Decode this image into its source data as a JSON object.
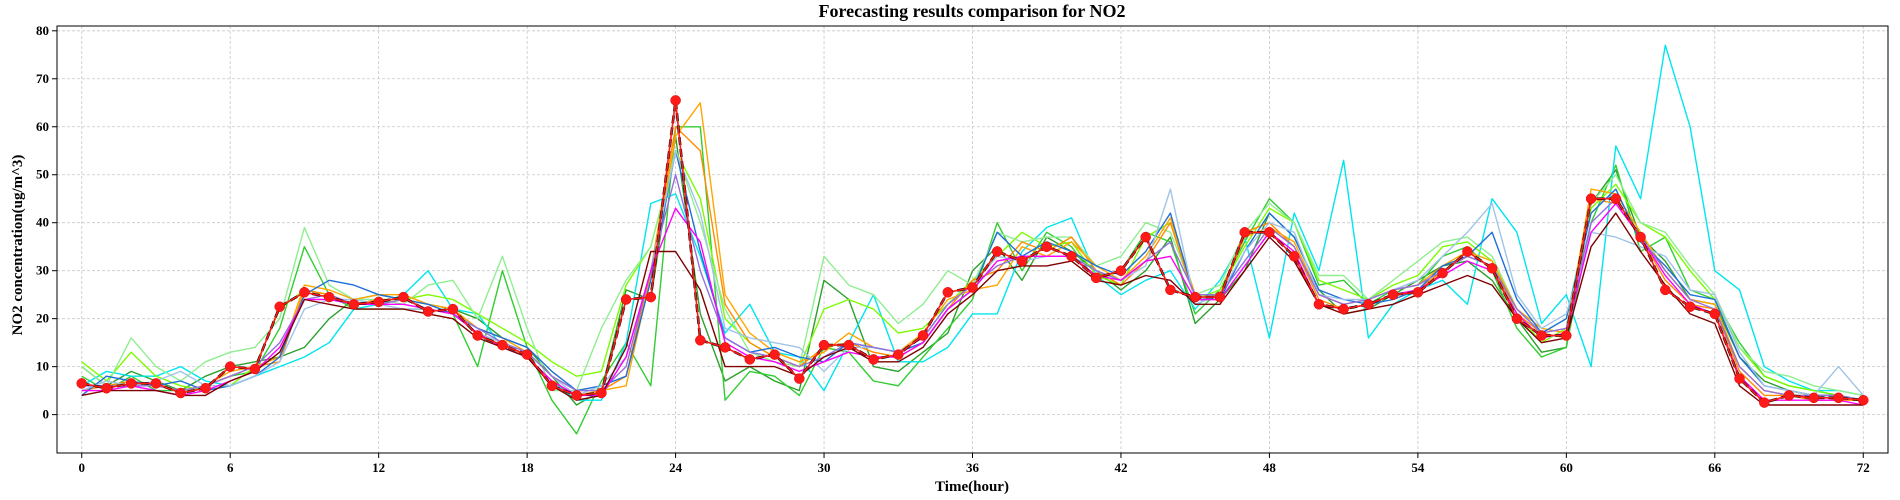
{
  "chart_data": {
    "type": "line",
    "title": "Forecasting results comparison for NO2",
    "xlabel": "Time(hour)",
    "ylabel": "NO2 concentration(ug/m^3)",
    "xlim": [
      -1,
      73
    ],
    "ylim": [
      -8,
      81
    ],
    "xticks": [
      0,
      6,
      12,
      18,
      24,
      30,
      36,
      42,
      48,
      54,
      60,
      66,
      72
    ],
    "yticks": [
      0,
      10,
      20,
      30,
      40,
      50,
      60,
      70,
      80
    ],
    "grid": true,
    "x": [
      0,
      1,
      2,
      3,
      4,
      5,
      6,
      7,
      8,
      9,
      10,
      11,
      12,
      13,
      14,
      15,
      16,
      17,
      18,
      19,
      20,
      21,
      22,
      23,
      24,
      25,
      26,
      27,
      28,
      29,
      30,
      31,
      32,
      33,
      34,
      35,
      36,
      37,
      38,
      39,
      40,
      41,
      42,
      43,
      44,
      45,
      46,
      47,
      48,
      49,
      50,
      51,
      52,
      53,
      54,
      55,
      56,
      57,
      58,
      59,
      60,
      61,
      62,
      63,
      64,
      65,
      66,
      67,
      68,
      69,
      70,
      71,
      72
    ],
    "actual": [
      6.5,
      5.5,
      6.5,
      6.5,
      4.5,
      5.5,
      10,
      9.5,
      22.5,
      25.5,
      24.5,
      23,
      23.5,
      24.5,
      21.5,
      22,
      16.5,
      14.5,
      12.5,
      6,
      4,
      4.5,
      24,
      24.5,
      65.5,
      15.5,
      14,
      11.5,
      12.5,
      7.5,
      14.5,
      14.5,
      11.5,
      12.5,
      16.5,
      25.5,
      26.5,
      34,
      32,
      35,
      33,
      28.5,
      30,
      37,
      26,
      24.5,
      24.5,
      38,
      38,
      33,
      23,
      22,
      23,
      25,
      25.5,
      29.5,
      34,
      30.5,
      20,
      16.5,
      16.5,
      45,
      45,
      37,
      26,
      22.5,
      21,
      7.5,
      2.5,
      4,
      3.5,
      3.5,
      3
    ],
    "series": [
      {
        "color": "#2ca02c",
        "values": [
          10,
          6,
          9,
          7,
          5,
          8,
          10,
          11,
          12,
          14,
          20,
          24,
          25,
          24,
          23,
          22,
          20,
          16,
          14,
          8,
          2,
          5,
          26,
          24,
          58,
          21,
          7,
          10,
          7,
          5,
          28,
          24,
          10,
          9,
          13,
          17,
          30,
          35,
          28,
          37,
          34,
          30,
          26,
          30,
          37,
          19,
          24,
          30,
          42,
          37,
          26,
          21,
          22,
          25,
          28,
          31,
          32,
          28,
          20,
          13,
          14,
          44,
          51,
          37,
          32,
          24,
          23,
          12,
          7,
          5,
          4,
          4,
          3
        ]
      },
      {
        "color": "#32cd32",
        "values": [
          8,
          5,
          8,
          5,
          5,
          6,
          8,
          9,
          18,
          35,
          25,
          22,
          22,
          22,
          22,
          21,
          10,
          30,
          14,
          3,
          -4,
          7,
          15,
          6,
          60,
          60,
          3,
          9,
          8,
          4,
          14,
          13,
          7,
          6,
          12,
          18,
          24,
          40,
          30,
          38,
          35,
          28,
          30,
          38,
          36,
          21,
          26,
          36,
          45,
          40,
          27,
          28,
          23,
          26,
          27,
          33,
          35,
          30,
          18,
          12,
          14,
          40,
          52,
          34,
          37,
          26,
          24,
          15,
          8,
          6,
          5,
          4,
          3
        ]
      },
      {
        "color": "#00e5ee",
        "values": [
          6,
          9,
          8,
          8,
          10,
          7,
          6,
          8,
          10,
          12,
          15,
          22,
          23,
          25,
          30,
          22,
          21,
          14,
          12,
          7,
          3,
          3,
          15,
          44,
          46,
          33,
          17,
          23,
          13,
          12,
          5,
          15,
          25,
          11,
          11,
          14,
          21,
          21,
          34,
          39,
          41,
          29,
          25,
          28,
          30,
          22,
          28,
          37,
          16,
          42,
          30,
          53,
          16,
          23,
          26,
          28,
          23,
          45,
          38,
          19,
          25,
          10,
          56,
          45,
          77,
          60,
          30,
          26,
          10,
          7,
          5,
          5,
          4
        ]
      },
      {
        "color": "#7cfc00",
        "values": [
          11,
          7,
          13,
          8,
          6,
          5,
          6,
          10,
          22,
          26,
          25,
          23,
          23,
          24,
          25,
          24,
          21,
          18,
          15,
          11,
          8,
          9,
          27,
          35,
          55,
          45,
          20,
          15,
          12,
          10,
          22,
          24,
          22,
          17,
          18,
          23,
          28,
          33,
          38,
          35,
          36,
          29,
          27,
          37,
          40,
          24,
          26,
          35,
          43,
          40,
          28,
          26,
          24,
          27,
          29,
          35,
          36,
          32,
          21,
          15,
          18,
          43,
          48,
          40,
          37,
          30,
          24,
          14,
          8,
          6,
          5,
          4,
          3
        ]
      },
      {
        "color": "#90ee90",
        "values": [
          10,
          6,
          16,
          10,
          7,
          11,
          13,
          14,
          20,
          39,
          27,
          24,
          24,
          23,
          27,
          28,
          20,
          33,
          18,
          5,
          5,
          18,
          28,
          35,
          55,
          40,
          22,
          13,
          11,
          10,
          33,
          27,
          25,
          19,
          23,
          30,
          27,
          38,
          36,
          37,
          37,
          31,
          33,
          40,
          38,
          25,
          27,
          38,
          44,
          40,
          29,
          29,
          24,
          28,
          32,
          36,
          37,
          33,
          22,
          17,
          20,
          44,
          50,
          40,
          38,
          31,
          25,
          14,
          9,
          8,
          6,
          5,
          4
        ]
      },
      {
        "color": "#ff8c00",
        "values": [
          5,
          6,
          7,
          6,
          5,
          6,
          8,
          10,
          11,
          26,
          25,
          23,
          24,
          24,
          22,
          21,
          17,
          15,
          12,
          7,
          4,
          5,
          8,
          30,
          60,
          55,
          23,
          15,
          12,
          10,
          14,
          15,
          13,
          12,
          15,
          22,
          28,
          30,
          36,
          34,
          37,
          30,
          27,
          32,
          40,
          24,
          24,
          38,
          40,
          35,
          24,
          22,
          23,
          25,
          26,
          30,
          33,
          31,
          21,
          17,
          16,
          45,
          44,
          37,
          28,
          23,
          22,
          9,
          4,
          4,
          3,
          3,
          3
        ]
      },
      {
        "color": "#ffa500",
        "values": [
          6,
          6,
          6,
          6,
          5,
          6,
          9,
          10,
          12,
          27,
          26,
          24,
          25,
          25,
          23,
          22,
          18,
          16,
          13,
          8,
          5,
          5,
          6,
          29,
          58,
          65,
          25,
          17,
          13,
          11,
          13,
          17,
          14,
          13,
          17,
          24,
          26,
          27,
          35,
          33,
          36,
          31,
          28,
          33,
          41,
          25,
          25,
          37,
          39,
          36,
          25,
          23,
          24,
          26,
          27,
          31,
          34,
          32,
          22,
          18,
          17,
          47,
          46,
          38,
          30,
          24,
          23,
          10,
          5,
          4,
          4,
          3,
          3
        ]
      },
      {
        "color": "#1e6fd9",
        "values": [
          4,
          8,
          7,
          6,
          7,
          5,
          6,
          8,
          12,
          25,
          28,
          27,
          25,
          24,
          23,
          21,
          18,
          16,
          14,
          9,
          5,
          6,
          8,
          28,
          55,
          34,
          16,
          13,
          14,
          12,
          11,
          15,
          14,
          13,
          15,
          22,
          26,
          38,
          33,
          36,
          34,
          31,
          29,
          34,
          42,
          24,
          24,
          34,
          42,
          37,
          26,
          24,
          23,
          24,
          26,
          31,
          33,
          38,
          24,
          17,
          20,
          42,
          47,
          36,
          31,
          25,
          24,
          12,
          6,
          5,
          4,
          4,
          3
        ]
      },
      {
        "color": "#a0c4e8",
        "values": [
          5,
          7,
          6,
          7,
          9,
          6,
          6,
          8,
          11,
          22,
          24,
          24,
          23,
          22,
          22,
          21,
          17,
          15,
          13,
          8,
          4,
          6,
          12,
          30,
          55,
          42,
          18,
          16,
          15,
          14,
          9,
          14,
          14,
          13,
          16,
          23,
          27,
          33,
          32,
          33,
          33,
          30,
          28,
          31,
          47,
          23,
          25,
          34,
          40,
          38,
          25,
          24,
          24,
          26,
          28,
          33,
          38,
          44,
          25,
          18,
          21,
          38,
          37,
          35,
          33,
          26,
          25,
          13,
          6,
          5,
          4,
          10,
          4
        ]
      },
      {
        "color": "#9370db",
        "values": [
          6,
          6,
          6,
          6,
          5,
          6,
          8,
          10,
          15,
          24,
          25,
          23,
          23,
          24,
          22,
          21,
          18,
          15,
          13,
          8,
          5,
          5,
          10,
          30,
          50,
          30,
          16,
          13,
          12,
          10,
          12,
          15,
          14,
          13,
          16,
          23,
          27,
          31,
          33,
          33,
          33,
          30,
          28,
          32,
          36,
          25,
          25,
          32,
          39,
          35,
          25,
          23,
          24,
          26,
          27,
          30,
          33,
          31,
          22,
          17,
          18,
          40,
          45,
          37,
          30,
          24,
          22,
          10,
          5,
          4,
          4,
          4,
          3
        ]
      },
      {
        "color": "#ff00ff",
        "values": [
          5,
          5,
          6,
          5,
          4,
          5,
          7,
          9,
          14,
          24,
          24,
          23,
          23,
          23,
          22,
          21,
          17,
          14,
          12,
          7,
          4,
          4,
          12,
          30,
          43,
          36,
          15,
          12,
          11,
          9,
          11,
          13,
          12,
          12,
          15,
          22,
          26,
          32,
          33,
          33,
          33,
          29,
          28,
          32,
          33,
          24,
          24,
          31,
          38,
          34,
          23,
          22,
          23,
          25,
          26,
          29,
          32,
          30,
          21,
          16,
          17,
          38,
          44,
          37,
          29,
          23,
          21,
          8,
          3,
          3,
          3,
          3,
          2
        ]
      },
      {
        "color": "#800000",
        "values": [
          4,
          5,
          5,
          5,
          4,
          4,
          7,
          9,
          13,
          24,
          23,
          22,
          22,
          22,
          21,
          20,
          16,
          14,
          12,
          6,
          3,
          4,
          14,
          34,
          34,
          26,
          10,
          10,
          10,
          8,
          12,
          14,
          11,
          11,
          14,
          21,
          25,
          30,
          31,
          31,
          32,
          28,
          27,
          29,
          28,
          23,
          23,
          30,
          37,
          32,
          23,
          21,
          22,
          23,
          25,
          27,
          29,
          27,
          20,
          15,
          16,
          35,
          42,
          34,
          27,
          21,
          19,
          6,
          2,
          2,
          2,
          2,
          2
        ]
      }
    ]
  }
}
